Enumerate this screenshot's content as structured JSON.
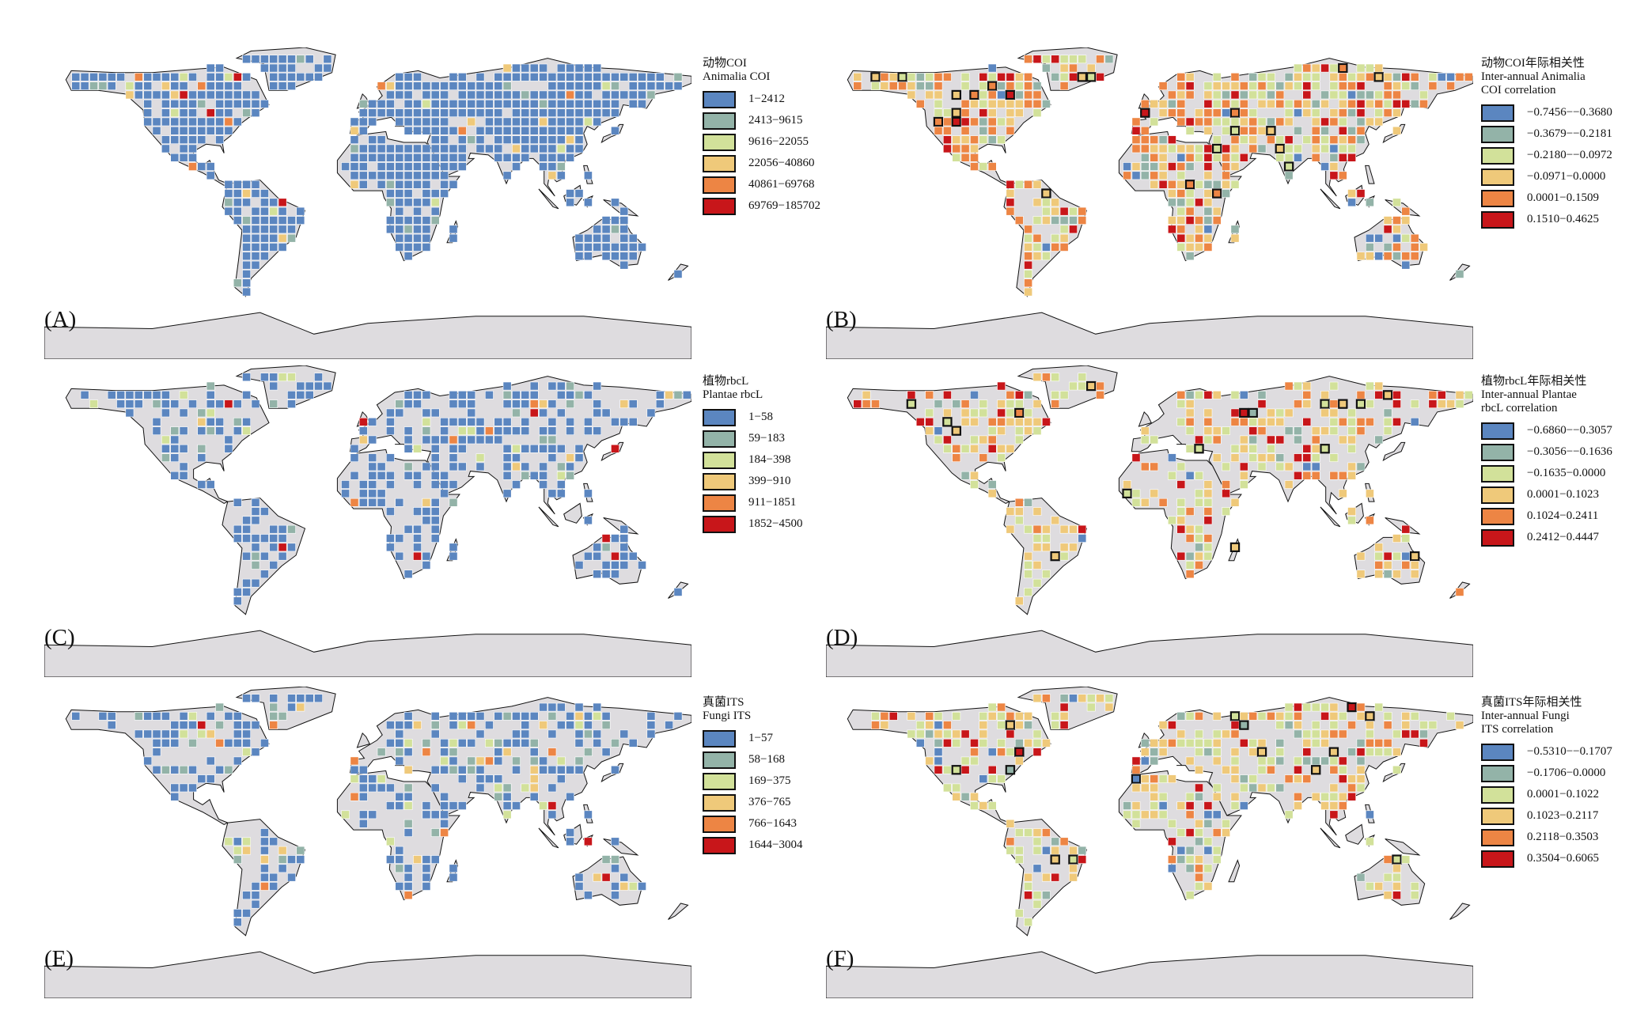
{
  "colors": {
    "land": "#dedcdf",
    "coast": "#111111",
    "highlight_border": "#111111"
  },
  "panels": [
    {
      "id": "A",
      "label": "(A)",
      "legend": {
        "title_lines": [
          "动物COI",
          "Animalia COI"
        ],
        "items": [
          {
            "range": "1−2412",
            "color": "#5b86c0"
          },
          {
            "range": "2413−9615",
            "color": "#93b3a8"
          },
          {
            "range": "9616−22055",
            "color": "#d2e19a"
          },
          {
            "range": "22056−40860",
            "color": "#efc97a"
          },
          {
            "range": "40861−69768",
            "color": "#ed8544"
          },
          {
            "range": "69769−185702",
            "color": "#c8161a"
          }
        ]
      }
    },
    {
      "id": "B",
      "label": "(B)",
      "legend": {
        "title_lines": [
          "动物COI年际相关性",
          "Inter-annual Animalia",
          "COI correlation"
        ],
        "items": [
          {
            "range": "−0.7456−−0.3680",
            "color": "#5b86c0"
          },
          {
            "range": "−0.3679−−0.2181",
            "color": "#93b3a8"
          },
          {
            "range": "−0.2180−−0.0972",
            "color": "#d2e19a"
          },
          {
            "range": "−0.0971−0.0000",
            "color": "#efc97a"
          },
          {
            "range": "0.0001−0.1509",
            "color": "#ed8544"
          },
          {
            "range": "0.1510−0.4625",
            "color": "#c8161a"
          }
        ]
      }
    },
    {
      "id": "C",
      "label": "(C)",
      "legend": {
        "title_lines": [
          "植物rbcL",
          "Plantae rbcL"
        ],
        "items": [
          {
            "range": "1−58",
            "color": "#5b86c0"
          },
          {
            "range": "59−183",
            "color": "#93b3a8"
          },
          {
            "range": "184−398",
            "color": "#d2e19a"
          },
          {
            "range": "399−910",
            "color": "#efc97a"
          },
          {
            "range": "911−1851",
            "color": "#ed8544"
          },
          {
            "range": "1852−4500",
            "color": "#c8161a"
          }
        ]
      }
    },
    {
      "id": "D",
      "label": "(D)",
      "legend": {
        "title_lines": [
          "植物rbcL年际相关性",
          "Inter-annual Plantae",
          "rbcL correlation"
        ],
        "items": [
          {
            "range": "−0.6860−−0.3057",
            "color": "#5b86c0"
          },
          {
            "range": "−0.3056−−0.1636",
            "color": "#93b3a8"
          },
          {
            "range": "−0.1635−0.0000",
            "color": "#d2e19a"
          },
          {
            "range": "0.0001−0.1023",
            "color": "#efc97a"
          },
          {
            "range": "0.1024−0.2411",
            "color": "#ed8544"
          },
          {
            "range": "0.2412−0.4447",
            "color": "#c8161a"
          }
        ]
      }
    },
    {
      "id": "E",
      "label": "(E)",
      "legend": {
        "title_lines": [
          "真菌ITS",
          "Fungi ITS"
        ],
        "items": [
          {
            "range": "1−57",
            "color": "#5b86c0"
          },
          {
            "range": "58−168",
            "color": "#93b3a8"
          },
          {
            "range": "169−375",
            "color": "#d2e19a"
          },
          {
            "range": "376−765",
            "color": "#efc97a"
          },
          {
            "range": "766−1643",
            "color": "#ed8544"
          },
          {
            "range": "1644−3004",
            "color": "#c8161a"
          }
        ]
      }
    },
    {
      "id": "F",
      "label": "(F)",
      "legend": {
        "title_lines": [
          "真菌ITS年际相关性",
          "Inter-annual Fungi",
          "ITS correlation"
        ],
        "items": [
          {
            "range": "−0.5310−−0.1707",
            "color": "#5b86c0"
          },
          {
            "range": "−0.1706−0.0000",
            "color": "#93b3a8"
          },
          {
            "range": "0.0001−0.1022",
            "color": "#d2e19a"
          },
          {
            "range": "0.1023−0.2117",
            "color": "#efc97a"
          },
          {
            "range": "0.2118−0.3503",
            "color": "#ed8544"
          },
          {
            "range": "0.3504−0.6065",
            "color": "#c8161a"
          }
        ]
      }
    }
  ]
}
